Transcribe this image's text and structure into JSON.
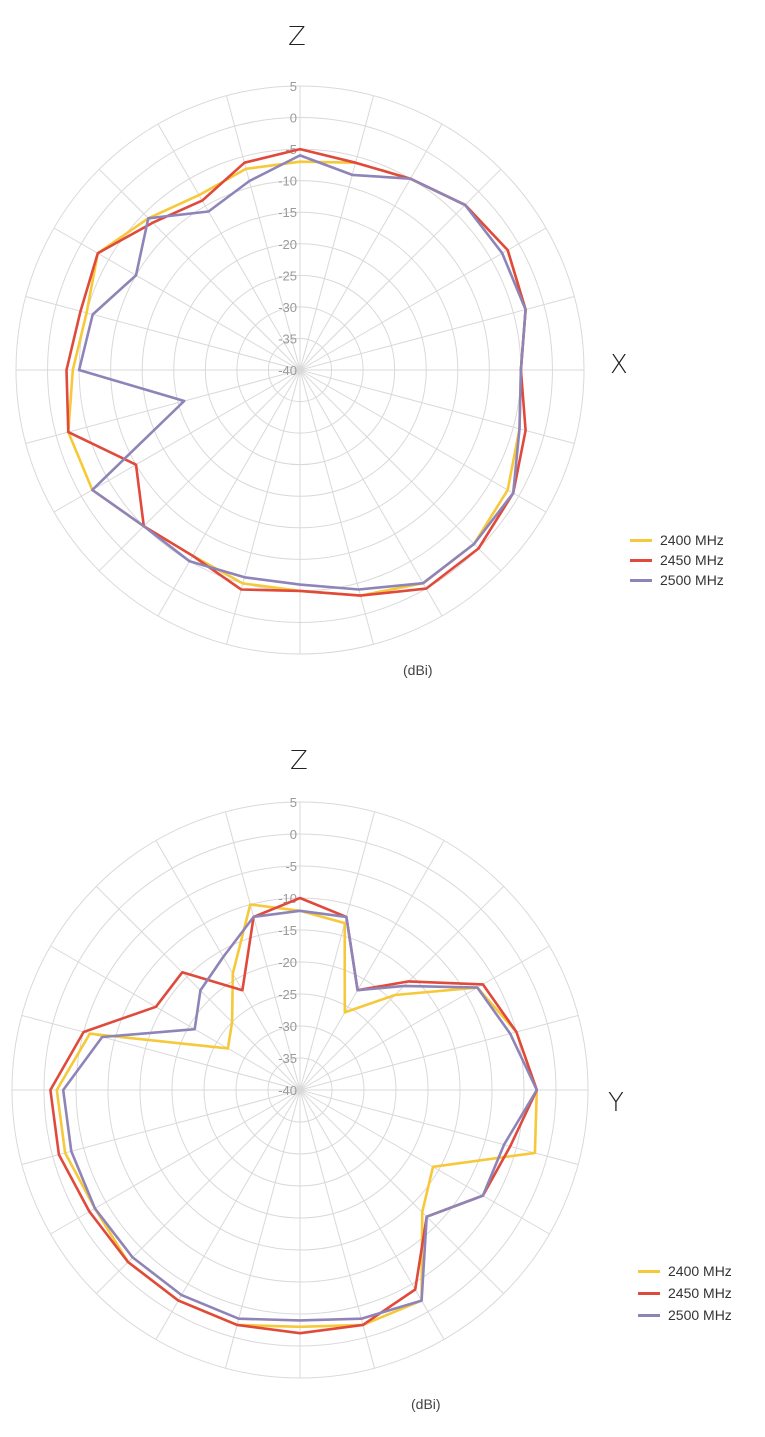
{
  "chart_data": [
    {
      "type": "radar",
      "title": "",
      "axis_label_top": "Z",
      "axis_label_right": "X",
      "unit_label": "(dBi)",
      "r_ticks": [
        "5",
        "0",
        "-5",
        "-10",
        "-15",
        "-20",
        "-25",
        "-30",
        "-35",
        "-40"
      ],
      "r_range": [
        -40,
        5
      ],
      "angle_step_deg": 15,
      "grid": true,
      "legend_position": "right",
      "series": [
        {
          "name": "2400 MHz",
          "color": "#f5c93a",
          "values": [
            -7,
            -6,
            -5,
            -3,
            -2,
            -3,
            -5,
            -4,
            -2,
            -1,
            -1,
            -3,
            -5,
            -5,
            -6,
            -5,
            -2,
            -2,
            -4,
            -5,
            -3,
            -6,
            -8,
            -7
          ]
        },
        {
          "name": "2450 MHz",
          "color": "#e04a3c",
          "values": [
            -5,
            -6,
            -5,
            -3,
            -2,
            -3,
            -5,
            -3,
            -1,
            0,
            0,
            -3,
            -5,
            -4,
            -6,
            -5,
            -10,
            -2,
            -3,
            -4,
            -3,
            -7,
            -9,
            -6
          ]
        },
        {
          "name": "2500 MHz",
          "color": "#8e84b8",
          "values": [
            -6,
            -8,
            -5,
            -3,
            -3,
            -3,
            -5,
            -4,
            -1,
            -1,
            -1,
            -4,
            -6,
            -6,
            -5,
            -5,
            -2,
            -21,
            -5,
            -6,
            -10,
            -6,
            -11,
            -9
          ]
        }
      ]
    },
    {
      "type": "radar",
      "title": "",
      "axis_label_top": "Z",
      "axis_label_right": "Y",
      "unit_label": "(dBi)",
      "r_ticks": [
        "5",
        "0",
        "-5",
        "-10",
        "-15",
        "-20",
        "-25",
        "-30",
        "-35",
        "-40"
      ],
      "r_range": [
        -40,
        5
      ],
      "angle_step_deg": 15,
      "grid": true,
      "legend_position": "right",
      "series": [
        {
          "name": "2400 MHz",
          "color": "#f5c93a",
          "values": [
            -12,
            -13,
            -26,
            -19,
            -8,
            -5,
            -3,
            -2,
            -16,
            -13,
            -2,
            -2,
            -3,
            -2,
            -2,
            -2,
            -3,
            -2,
            -2,
            -6,
            -27,
            -25,
            -19,
            -10
          ]
        },
        {
          "name": "2450 MHz",
          "color": "#e04a3c",
          "values": [
            -10,
            -12,
            -22,
            -16,
            -7,
            -5,
            -3,
            -6,
            -7,
            -12,
            -4,
            -2,
            -2,
            -2,
            -2,
            -2,
            -2,
            -1,
            -1,
            -5,
            -14,
            -14,
            -22,
            -12
          ]
        },
        {
          "name": "2500 MHz",
          "color": "#8e84b8",
          "values": [
            -12,
            -12,
            -22,
            -17,
            -8,
            -6,
            -3,
            -7,
            -7,
            -12,
            -2,
            -3,
            -4,
            -3,
            -3,
            -3,
            -3,
            -3,
            -3,
            -8,
            -21,
            -18,
            -16,
            -12
          ]
        }
      ]
    }
  ]
}
